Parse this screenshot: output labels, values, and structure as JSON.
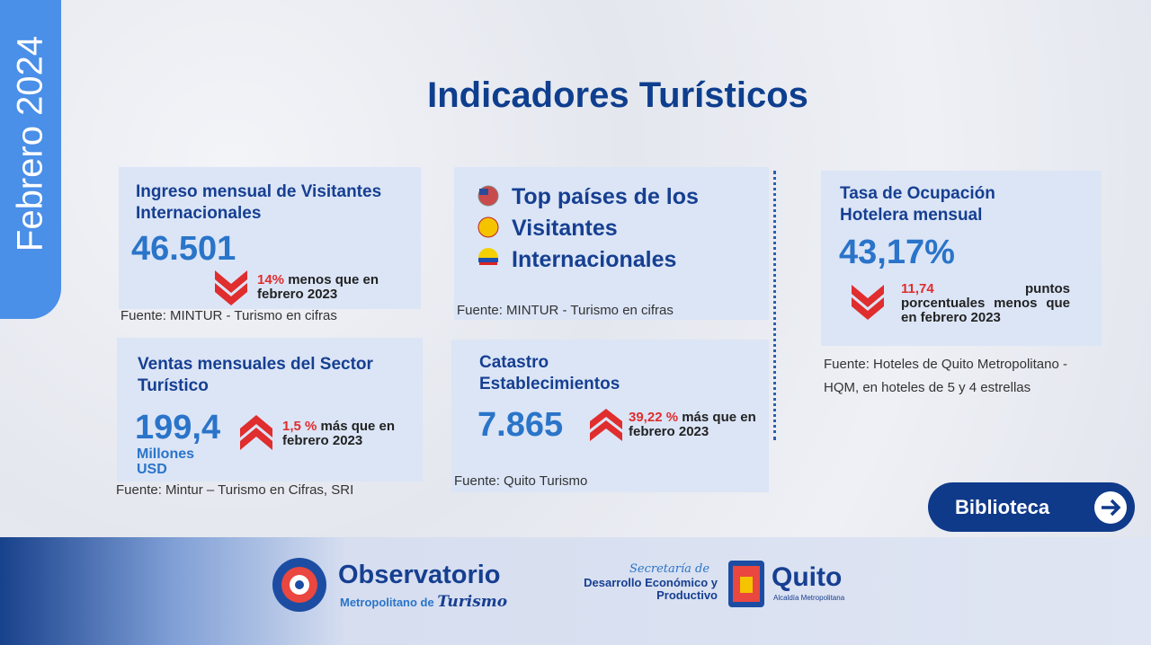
{
  "side_tab": "Febrero 2024",
  "title": "Indicadores Turísticos",
  "cards": [
    {
      "title": "Ingreso mensual de Visitantes Internacionales",
      "value": "46.501",
      "change": "14%",
      "change_text": "menos que en febrero 2023",
      "source": "Fuente: MINTUR - Turismo en cifras"
    },
    {
      "title": "Top países de los Visitantes Internacionales",
      "source": "Fuente: MINTUR - Turismo en cifras"
    },
    {
      "title": "Ventas mensuales del Sector Turístico",
      "value": "199,4",
      "unit": "Millones USD",
      "change": "1,5 %",
      "change_text": "más que en febrero 2023",
      "source": "Fuente: Mintur – Turismo en Cifras, SRI"
    },
    {
      "title": "Catastro Establecimientos",
      "value": "7.865",
      "change": "39,22 %",
      "change_text": "más que en febrero 2023",
      "source": "Fuente: Quito Turismo"
    },
    {
      "title": "Tasa de Ocupación Hotelera mensual",
      "value": "43,17%",
      "change": "11,74",
      "change_text": "puntos porcentuales menos que en febrero 2023",
      "source": "Fuente: Hoteles de Quito Metropolitano - HQM, en hoteles de 5 y 4 estrellas"
    }
  ],
  "button": "Biblioteca",
  "footer": {
    "observatorio": "Observatorio",
    "observatorio_sub": "Metropolitano de",
    "observatorio_script": "Turismo",
    "secretaria": "Secretaría de",
    "secretaria_name": "Desarrollo Económico y Productivo",
    "city": "Quito",
    "city_sub": "Alcaldía Metropolitana"
  }
}
